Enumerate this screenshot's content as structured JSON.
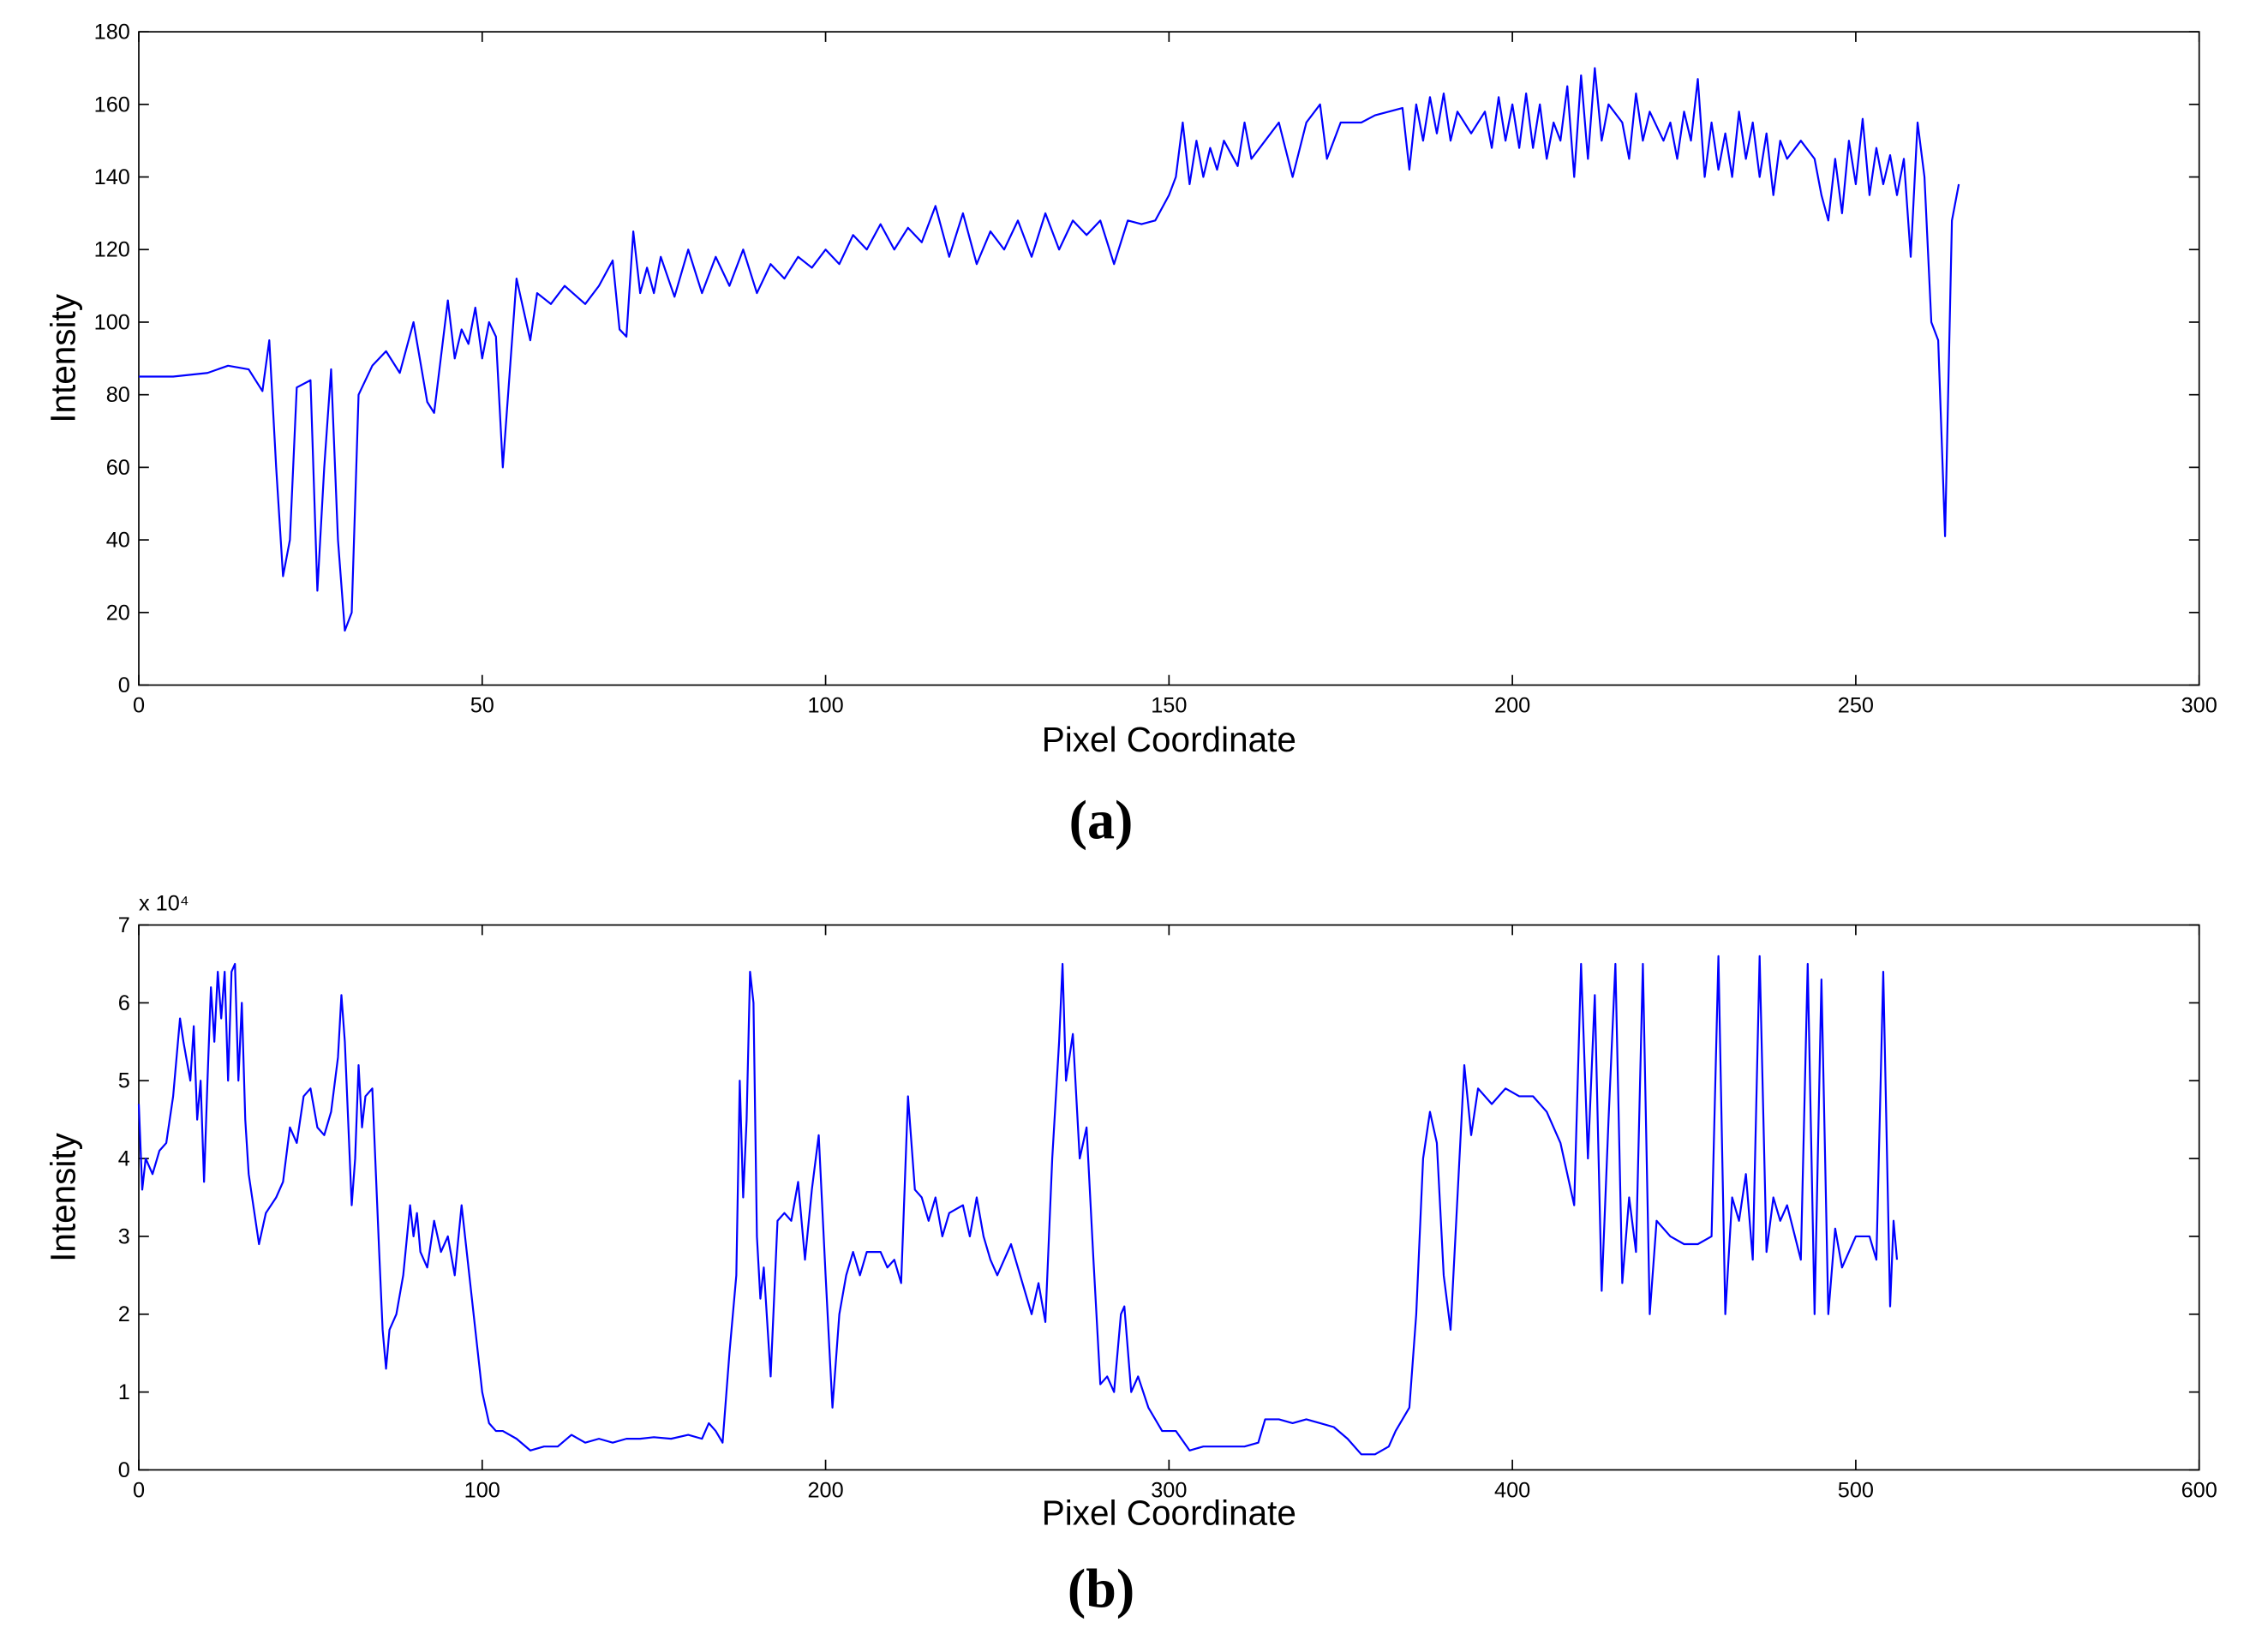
{
  "chart_data": [
    {
      "type": "line",
      "panel_label": "(a)",
      "x_label": "Pixel Coordinate",
      "y_label": "Intensity",
      "xlim": [
        0,
        300
      ],
      "xticks": [
        0,
        50,
        100,
        150,
        200,
        250,
        300
      ],
      "ylim": [
        0,
        180
      ],
      "yticks": [
        0,
        20,
        40,
        60,
        80,
        100,
        120,
        140,
        160,
        180
      ],
      "series": [
        {
          "color": "#0000ff",
          "x": [
            0,
            5,
            10,
            13,
            16,
            18,
            19,
            20,
            21,
            22,
            23,
            25,
            26,
            27,
            28,
            29,
            30,
            31,
            32,
            34,
            36,
            38,
            40,
            42,
            43,
            45,
            46,
            47,
            48,
            49,
            50,
            51,
            52,
            53,
            55,
            57,
            58,
            60,
            62,
            65,
            67,
            69,
            70,
            71,
            72,
            73,
            74,
            75,
            76,
            78,
            80,
            82,
            84,
            86,
            88,
            90,
            92,
            94,
            96,
            98,
            100,
            102,
            104,
            106,
            108,
            110,
            112,
            114,
            116,
            118,
            120,
            122,
            124,
            126,
            128,
            130,
            132,
            134,
            136,
            138,
            140,
            142,
            144,
            146,
            148,
            150,
            151,
            152,
            153,
            154,
            155,
            156,
            157,
            158,
            160,
            161,
            162,
            164,
            166,
            168,
            170,
            172,
            173,
            175,
            178,
            180,
            182,
            184,
            185,
            186,
            187,
            188,
            189,
            190,
            191,
            192,
            194,
            196,
            197,
            198,
            199,
            200,
            201,
            202,
            203,
            204,
            205,
            206,
            207,
            208,
            209,
            210,
            211,
            212,
            213,
            214,
            216,
            217,
            218,
            219,
            220,
            222,
            223,
            224,
            225,
            226,
            227,
            228,
            229,
            230,
            231,
            232,
            233,
            234,
            235,
            236,
            237,
            238,
            239,
            240,
            242,
            244,
            245,
            246,
            247,
            248,
            249,
            250,
            251,
            252,
            253,
            254,
            255,
            256,
            257,
            258,
            259,
            260,
            261,
            262,
            263,
            264,
            265
          ],
          "values": [
            85,
            85,
            86,
            88,
            87,
            81,
            95,
            60,
            30,
            40,
            82,
            84,
            26,
            60,
            87,
            40,
            15,
            20,
            80,
            88,
            92,
            86,
            100,
            78,
            75,
            106,
            90,
            98,
            94,
            104,
            90,
            100,
            96,
            60,
            112,
            95,
            108,
            105,
            110,
            105,
            110,
            117,
            98,
            96,
            125,
            108,
            115,
            108,
            118,
            107,
            120,
            108,
            118,
            110,
            120,
            108,
            116,
            112,
            118,
            115,
            120,
            116,
            124,
            120,
            127,
            120,
            126,
            122,
            132,
            118,
            130,
            116,
            125,
            120,
            128,
            118,
            130,
            120,
            128,
            124,
            128,
            116,
            128,
            127,
            128,
            135,
            140,
            155,
            138,
            150,
            140,
            148,
            142,
            150,
            143,
            155,
            145,
            150,
            155,
            140,
            155,
            160,
            145,
            155,
            155,
            157,
            158,
            159,
            142,
            160,
            150,
            162,
            152,
            163,
            150,
            158,
            152,
            158,
            148,
            162,
            150,
            160,
            148,
            163,
            148,
            160,
            145,
            155,
            150,
            165,
            140,
            168,
            145,
            170,
            150,
            160,
            155,
            145,
            163,
            150,
            158,
            150,
            155,
            145,
            158,
            150,
            167,
            140,
            155,
            142,
            152,
            140,
            158,
            145,
            155,
            140,
            152,
            135,
            150,
            145,
            150,
            145,
            135,
            128,
            145,
            130,
            150,
            138,
            156,
            135,
            148,
            138,
            146,
            135,
            145,
            118,
            155,
            140,
            100,
            95,
            41,
            128,
            138
          ]
        }
      ]
    },
    {
      "type": "line",
      "panel_label": "(b)",
      "x_label": "Pixel Coordinate",
      "y_label": "Intensity",
      "y_exponent_label": "x 10⁴",
      "xlim": [
        0,
        600
      ],
      "xticks": [
        0,
        100,
        200,
        300,
        400,
        500,
        600
      ],
      "ylim": [
        0,
        7
      ],
      "yticks": [
        0,
        1,
        2,
        3,
        4,
        5,
        6,
        7
      ],
      "series": [
        {
          "color": "#0000ff",
          "x": [
            0,
            1,
            2,
            4,
            6,
            8,
            10,
            12,
            13,
            15,
            16,
            17,
            18,
            19,
            20,
            21,
            22,
            23,
            24,
            25,
            26,
            27,
            28,
            29,
            30,
            31,
            32,
            33,
            35,
            37,
            40,
            42,
            44,
            46,
            48,
            50,
            52,
            54,
            56,
            58,
            59,
            60,
            62,
            63,
            64,
            65,
            66,
            68,
            70,
            71,
            72,
            73,
            75,
            77,
            79,
            80,
            81,
            82,
            84,
            86,
            88,
            90,
            92,
            94,
            96,
            98,
            100,
            102,
            104,
            106,
            110,
            114,
            118,
            122,
            126,
            130,
            134,
            138,
            142,
            146,
            150,
            155,
            160,
            164,
            166,
            168,
            170,
            172,
            174,
            175,
            176,
            177,
            178,
            179,
            180,
            181,
            182,
            184,
            186,
            188,
            190,
            192,
            194,
            196,
            198,
            200,
            202,
            204,
            206,
            208,
            210,
            212,
            216,
            218,
            220,
            222,
            224,
            226,
            228,
            230,
            232,
            234,
            236,
            240,
            242,
            244,
            246,
            248,
            250,
            254,
            256,
            258,
            260,
            262,
            264,
            266,
            268,
            269,
            270,
            272,
            274,
            276,
            278,
            280,
            282,
            284,
            286,
            287,
            289,
            291,
            294,
            298,
            302,
            306,
            310,
            314,
            318,
            322,
            326,
            328,
            332,
            336,
            340,
            344,
            348,
            352,
            356,
            360,
            364,
            366,
            370,
            372,
            374,
            376,
            378,
            380,
            382,
            384,
            386,
            388,
            390,
            394,
            398,
            402,
            406,
            410,
            414,
            418,
            420,
            422,
            424,
            426,
            428,
            430,
            432,
            434,
            436,
            438,
            440,
            442,
            446,
            450,
            454,
            458,
            460,
            462,
            464,
            466,
            468,
            470,
            472,
            474,
            476,
            478,
            480,
            484,
            486,
            488,
            490,
            492,
            494,
            496,
            500,
            504,
            506,
            508,
            510,
            511,
            512
          ],
          "values": [
            4.7,
            3.6,
            4.0,
            3.8,
            4.1,
            4.2,
            4.8,
            5.8,
            5.5,
            5.0,
            5.7,
            4.5,
            5.0,
            3.7,
            5.0,
            6.2,
            5.5,
            6.4,
            5.8,
            6.4,
            5.0,
            6.4,
            6.5,
            5.0,
            6.0,
            4.5,
            3.8,
            3.5,
            2.9,
            3.3,
            3.5,
            3.7,
            4.4,
            4.2,
            4.8,
            4.9,
            4.4,
            4.3,
            4.6,
            5.3,
            6.1,
            5.5,
            3.4,
            4.0,
            5.2,
            4.4,
            4.8,
            4.9,
            2.8,
            1.8,
            1.3,
            1.8,
            2.0,
            2.5,
            3.4,
            3.0,
            3.3,
            2.8,
            2.6,
            3.2,
            2.8,
            3.0,
            2.5,
            3.4,
            2.6,
            1.8,
            1.0,
            0.6,
            0.5,
            0.5,
            0.4,
            0.25,
            0.3,
            0.3,
            0.45,
            0.35,
            0.4,
            0.35,
            0.4,
            0.4,
            0.42,
            0.4,
            0.45,
            0.4,
            0.6,
            0.5,
            0.35,
            1.5,
            2.5,
            5.0,
            3.5,
            4.5,
            6.4,
            6.0,
            3.0,
            2.2,
            2.6,
            1.2,
            3.2,
            3.3,
            3.2,
            3.7,
            2.7,
            3.6,
            4.3,
            2.5,
            0.8,
            2.0,
            2.5,
            2.8,
            2.5,
            2.8,
            2.8,
            2.6,
            2.7,
            2.4,
            4.8,
            3.6,
            3.5,
            3.2,
            3.5,
            3.0,
            3.3,
            3.4,
            3.0,
            3.5,
            3.0,
            2.7,
            2.5,
            2.9,
            2.6,
            2.3,
            2.0,
            2.4,
            1.9,
            4.0,
            5.5,
            6.5,
            5.0,
            5.6,
            4.0,
            4.4,
            2.7,
            1.1,
            1.2,
            1.0,
            2.0,
            2.1,
            1.0,
            1.2,
            0.8,
            0.5,
            0.5,
            0.25,
            0.3,
            0.3,
            0.3,
            0.3,
            0.35,
            0.65,
            0.65,
            0.6,
            0.65,
            0.6,
            0.55,
            0.4,
            0.2,
            0.2,
            0.3,
            0.5,
            0.8,
            2.0,
            4.0,
            4.6,
            4.2,
            2.5,
            1.8,
            3.5,
            5.2,
            4.3,
            4.9,
            4.7,
            4.9,
            4.8,
            4.8,
            4.6,
            4.2,
            3.4,
            6.5,
            4.0,
            6.1,
            2.3,
            4.5,
            6.5,
            2.4,
            3.5,
            2.8,
            6.5,
            2.0,
            3.2,
            3.0,
            2.9,
            2.9,
            3.0,
            6.6,
            2.0,
            3.5,
            3.2,
            3.8,
            2.7,
            6.6,
            2.8,
            3.5,
            3.2,
            3.4,
            2.7,
            6.5,
            2.0,
            6.3,
            2.0,
            3.1,
            2.6,
            3.0,
            3.0,
            2.7,
            6.4,
            2.1,
            3.2,
            2.7
          ]
        }
      ]
    }
  ]
}
